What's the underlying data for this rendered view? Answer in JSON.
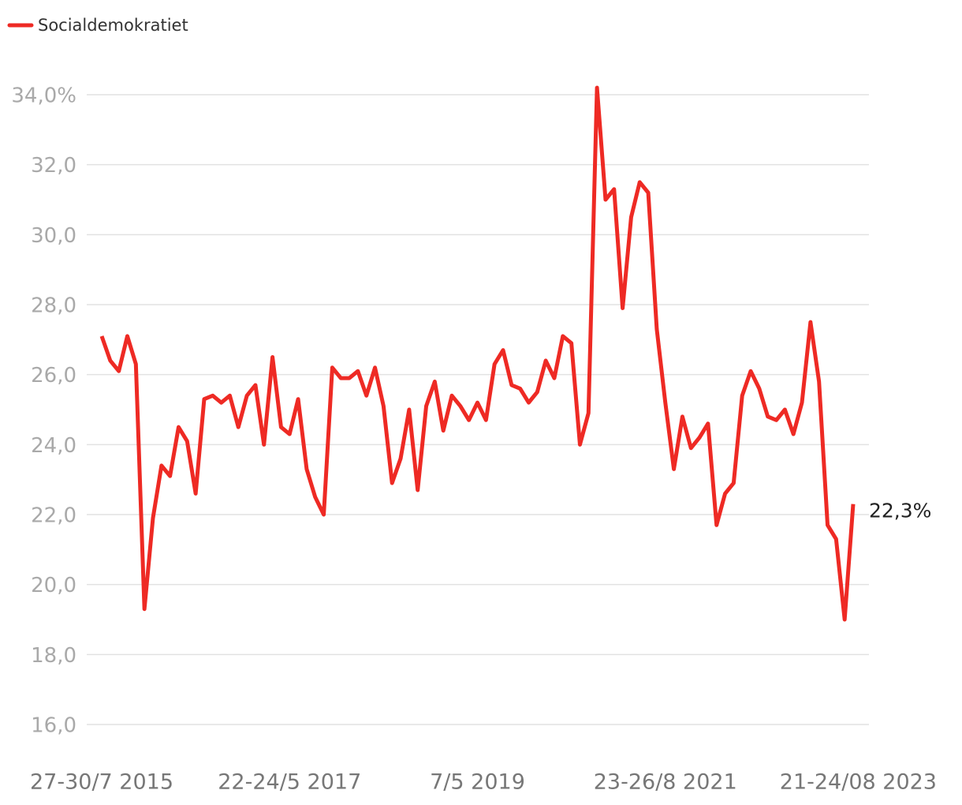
{
  "chart_data": {
    "type": "line",
    "categories": [
      "27-30/7 2015",
      null,
      null,
      null,
      null,
      null,
      null,
      null,
      null,
      null,
      null,
      null,
      null,
      null,
      null,
      null,
      null,
      null,
      null,
      null,
      null,
      null,
      "22-24/5 2017",
      null,
      null,
      null,
      null,
      null,
      null,
      null,
      null,
      null,
      null,
      null,
      null,
      null,
      null,
      null,
      null,
      null,
      null,
      null,
      null,
      null,
      "7/5 2019",
      null,
      null,
      null,
      null,
      null,
      null,
      null,
      null,
      null,
      null,
      null,
      null,
      null,
      null,
      null,
      null,
      null,
      null,
      null,
      null,
      null,
      "23-26/8 2021",
      null,
      null,
      null,
      null,
      null,
      null,
      null,
      null,
      null,
      null,
      null,
      null,
      null,
      null,
      null,
      null,
      null,
      null,
      null,
      null,
      null,
      "21-24/08 2023"
    ],
    "series": [
      {
        "name": "Socialdemokratiet",
        "color": "#ee2a24",
        "values": [
          27.1,
          26.4,
          26.1,
          27.1,
          26.3,
          19.3,
          21.9,
          23.4,
          23.1,
          24.5,
          24.1,
          22.6,
          25.3,
          25.4,
          25.2,
          25.4,
          24.5,
          25.4,
          25.7,
          24.0,
          26.5,
          24.5,
          24.3,
          25.3,
          23.3,
          22.5,
          22.0,
          26.2,
          25.9,
          25.9,
          26.1,
          25.4,
          26.2,
          25.1,
          22.9,
          23.6,
          25.0,
          22.7,
          25.1,
          25.8,
          24.4,
          25.4,
          25.1,
          24.7,
          25.2,
          24.7,
          26.3,
          26.7,
          25.7,
          25.6,
          25.2,
          25.5,
          26.4,
          25.9,
          27.1,
          26.9,
          24.0,
          24.9,
          34.2,
          31.0,
          31.3,
          27.9,
          30.5,
          31.5,
          31.2,
          27.3,
          25.2,
          23.3,
          24.8,
          23.9,
          24.2,
          24.6,
          21.7,
          22.6,
          22.9,
          25.4,
          26.1,
          25.6,
          24.8,
          24.7,
          25.0,
          24.3,
          25.2,
          27.5,
          25.8,
          21.7,
          21.3,
          19.0,
          22.3
        ],
        "value_labels": [
          null,
          null,
          null,
          null,
          null,
          null,
          null,
          null,
          null,
          null,
          null,
          null,
          null,
          null,
          null,
          null,
          null,
          null,
          null,
          null,
          null,
          null,
          null,
          null,
          null,
          null,
          null,
          null,
          null,
          null,
          null,
          null,
          null,
          null,
          null,
          null,
          null,
          null,
          null,
          null,
          null,
          null,
          null,
          null,
          null,
          null,
          null,
          null,
          null,
          null,
          null,
          null,
          null,
          null,
          null,
          null,
          null,
          null,
          null,
          null,
          null,
          null,
          null,
          null,
          null,
          null,
          null,
          null,
          null,
          null,
          null,
          null,
          null,
          null,
          null,
          null,
          null,
          null,
          null,
          null,
          null,
          null,
          null,
          null,
          null,
          null,
          null,
          null,
          "22,3%"
        ]
      }
    ],
    "ylim": [
      16,
      34
    ],
    "yticks": [
      {
        "value": 16,
        "label": "16,0"
      },
      {
        "value": 18,
        "label": "18,0"
      },
      {
        "value": 20,
        "label": "20,0"
      },
      {
        "value": 22,
        "label": "22,0"
      },
      {
        "value": 24,
        "label": "24,0"
      },
      {
        "value": 26,
        "label": "26,0"
      },
      {
        "value": 28,
        "label": "28,0"
      },
      {
        "value": 30,
        "label": "30,0"
      },
      {
        "value": 32,
        "label": "32,0"
      },
      {
        "value": 34,
        "label": "34,0%"
      }
    ],
    "grid": true
  }
}
